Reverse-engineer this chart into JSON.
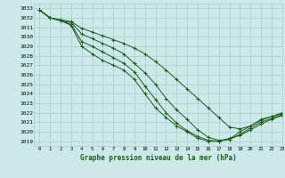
{
  "bg_color": "#cce8e8",
  "grid_color": "#aacccc",
  "line_color": "#1a5c1a",
  "title": "Graphe pression niveau de la mer (hPa)",
  "xlim": [
    -0.5,
    23
  ],
  "ylim": [
    1018.5,
    1033.5
  ],
  "yticks": [
    1019,
    1020,
    1021,
    1022,
    1023,
    1024,
    1025,
    1026,
    1027,
    1028,
    1029,
    1030,
    1031,
    1032,
    1033
  ],
  "xticks": [
    0,
    1,
    2,
    3,
    4,
    5,
    6,
    7,
    8,
    9,
    10,
    11,
    12,
    13,
    14,
    15,
    16,
    17,
    18,
    19,
    20,
    21,
    22,
    23
  ],
  "series": [
    [
      1032.8,
      1032.0,
      1031.8,
      1031.6,
      1030.9,
      1030.5,
      1030.1,
      1029.7,
      1029.3,
      1028.8,
      1028.2,
      1027.4,
      1026.5,
      1025.5,
      1024.5,
      1023.5,
      1022.5,
      1021.5,
      1020.5,
      1020.3,
      1020.6,
      1021.2,
      1021.6,
      1021.9
    ],
    [
      1032.8,
      1032.0,
      1031.7,
      1031.5,
      1030.3,
      1029.8,
      1029.3,
      1028.8,
      1028.2,
      1027.2,
      1026.2,
      1025.0,
      1023.5,
      1022.3,
      1021.3,
      1020.2,
      1019.4,
      1019.1,
      1019.2,
      1020.0,
      1020.6,
      1021.3,
      1021.6,
      1022.0
    ],
    [
      1032.8,
      1032.0,
      1031.7,
      1031.3,
      1029.5,
      1029.0,
      1028.4,
      1027.8,
      1027.2,
      1026.3,
      1024.8,
      1023.4,
      1022.0,
      1020.9,
      1020.1,
      1019.5,
      1019.1,
      1019.0,
      1019.2,
      1019.7,
      1020.4,
      1021.0,
      1021.4,
      1021.8
    ],
    [
      1032.8,
      1032.0,
      1031.7,
      1031.2,
      1029.0,
      1028.2,
      1027.5,
      1027.0,
      1026.5,
      1025.5,
      1024.0,
      1022.5,
      1021.5,
      1020.6,
      1020.0,
      1019.3,
      1019.0,
      1019.0,
      1019.3,
      1019.6,
      1020.2,
      1020.8,
      1021.3,
      1021.7
    ]
  ]
}
